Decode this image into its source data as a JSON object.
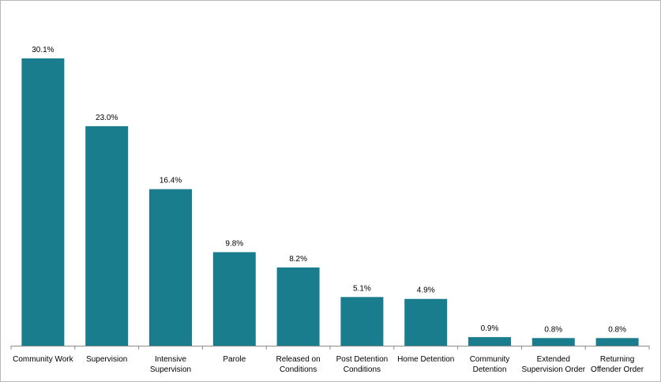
{
  "chart_data": {
    "type": "bar",
    "categories": [
      [
        "Community Work"
      ],
      [
        "Supervision"
      ],
      [
        "Intensive",
        "Supervision"
      ],
      [
        "Parole"
      ],
      [
        "Released on",
        "Conditions"
      ],
      [
        "Post Detention",
        "Conditions"
      ],
      [
        "Home Detention"
      ],
      [
        "Community",
        "Detention"
      ],
      [
        "Extended",
        "Supervision Order"
      ],
      [
        "Returning",
        "Offender Order"
      ]
    ],
    "values": [
      30.1,
      23.0,
      16.4,
      9.8,
      8.2,
      5.1,
      4.9,
      0.9,
      0.8,
      0.8
    ],
    "data_labels": [
      "30.1%",
      "23.0%",
      "16.4%",
      "9.8%",
      "8.2%",
      "5.1%",
      "4.9%",
      "0.9%",
      "0.8%",
      "0.8%"
    ],
    "ylim": [
      0,
      30.1
    ],
    "grid": false,
    "legend": "none",
    "bar_color": "#1a7d8e"
  }
}
